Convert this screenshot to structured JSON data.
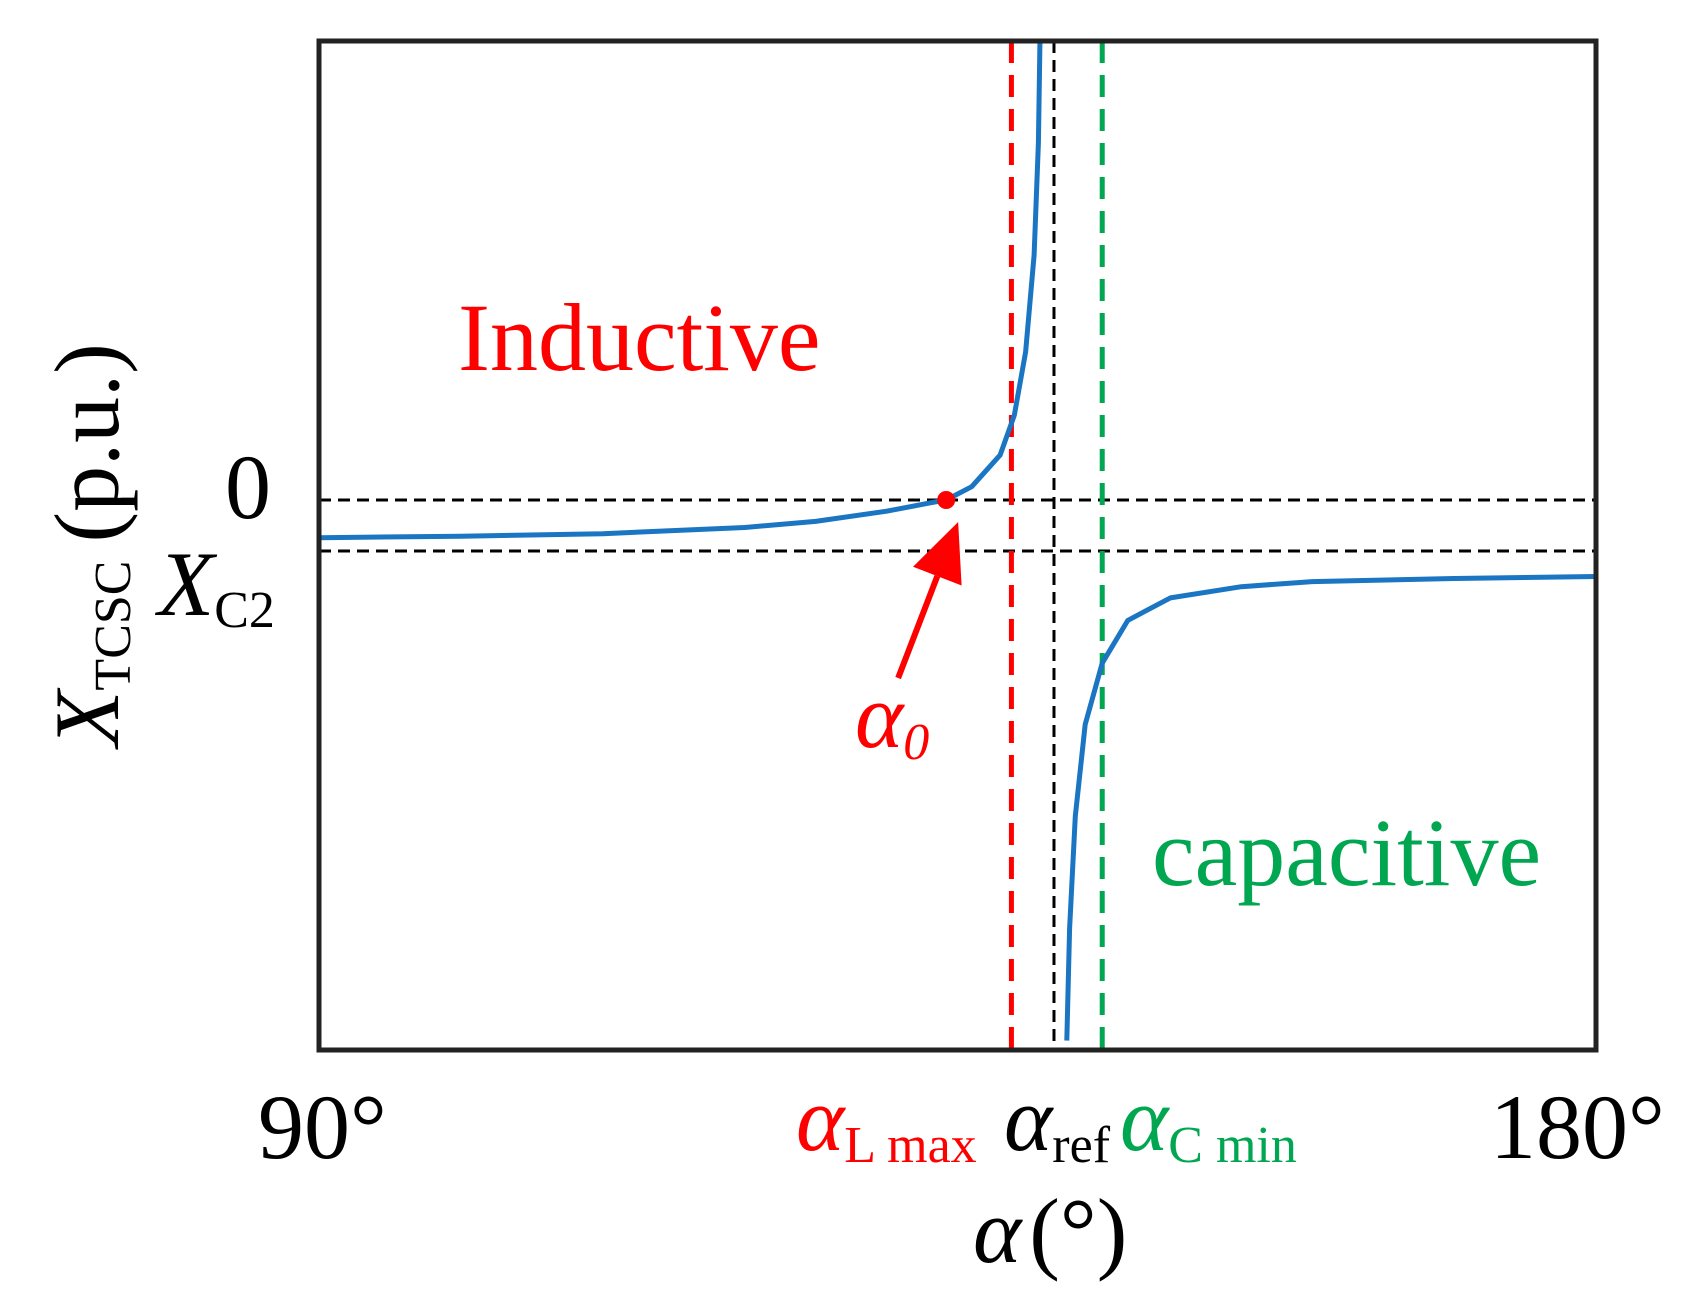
{
  "chart_data": {
    "type": "line",
    "xlabel": {
      "symbol": "α",
      "unit": "(°)"
    },
    "ylabel": {
      "symbol": "X",
      "subscript": "TCSC",
      "unit": "(p.u.)"
    },
    "xlim": [
      90,
      180
    ],
    "x_ticks": [
      "90°",
      "180°"
    ],
    "y_ticks": [
      {
        "label": "0",
        "value": 0
      },
      {
        "label": "X",
        "subscript": "C2",
        "value": -0.5
      }
    ],
    "vertical_markers": [
      {
        "symbol": "α",
        "subscript": "L max",
        "x": 138.8,
        "color": "#ff0000",
        "style": "dashed"
      },
      {
        "symbol": "α",
        "subscript": "ref",
        "x": 141.8,
        "color": "#000000",
        "style": "dashed"
      },
      {
        "symbol": "α",
        "subscript": "C min",
        "x": 145.2,
        "color": "#00a650",
        "style": "dashed"
      }
    ],
    "horizontal_markers": [
      {
        "label": "0",
        "y": 0,
        "color": "#000000",
        "style": "dashed"
      },
      {
        "label": "X_C2",
        "y": -0.5,
        "color": "#000000",
        "style": "dashed"
      }
    ],
    "series": [
      {
        "color": "#1a75c2",
        "segments": [
          {
            "x": [
              90,
              100,
              110,
              120,
              125,
              130,
              133,
              134.2,
              136,
              138,
              139,
              139.8,
              140.4,
              140.7,
              140.9
            ],
            "y": [
              -0.37,
              -0.355,
              -0.33,
              -0.27,
              -0.21,
              -0.11,
              -0.03,
              0,
              0.13,
              0.44,
              0.83,
              1.45,
              2.4,
              3.5,
              5.3
            ]
          },
          {
            "x": [
              142.7,
              142.9,
              143.3,
              144,
              145.2,
              147,
              150,
              155,
              160,
              170,
              180
            ],
            "y": [
              -5.3,
              -4.2,
              -3.1,
              -2.2,
              -1.6,
              -1.18,
              -0.96,
              -0.85,
              -0.8,
              -0.77,
              -0.75
            ]
          }
        ]
      }
    ],
    "annotations": [
      {
        "text": "Inductive",
        "color": "#ff0000"
      },
      {
        "text": "capacitive",
        "color": "#00a650"
      },
      {
        "symbol": "α",
        "subscript": "0",
        "color": "#ff0000",
        "x": 134.2,
        "y": 0
      }
    ],
    "ylim": [
      -5.3,
      5.3
    ],
    "grid": false,
    "legend": "none"
  }
}
